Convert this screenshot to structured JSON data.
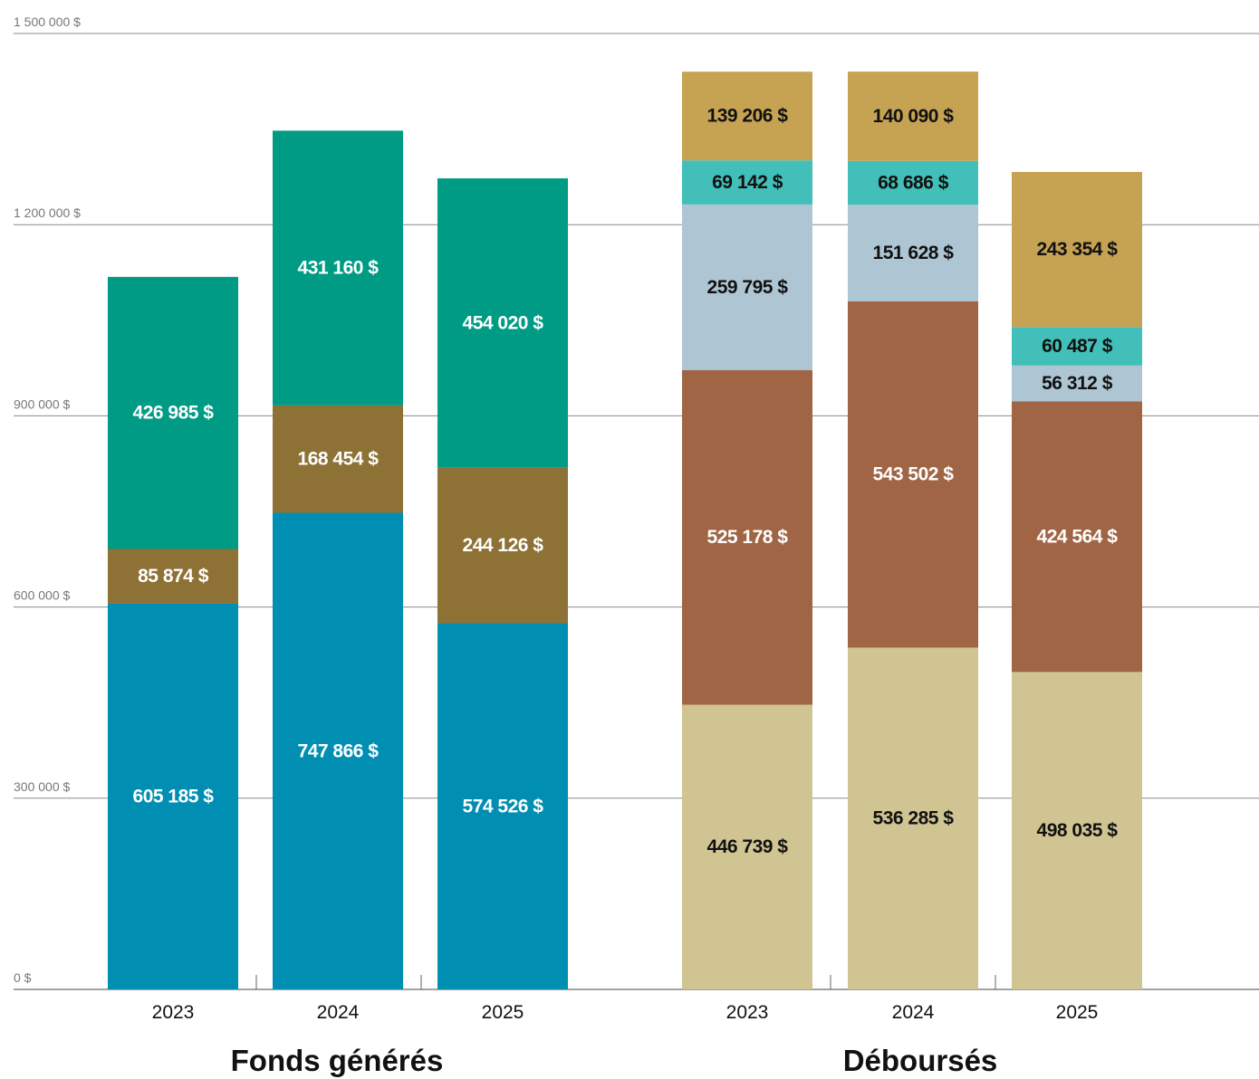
{
  "chart_data": {
    "type": "bar",
    "stacked": true,
    "ylim": [
      0,
      1500000
    ],
    "y_ticks": [
      0,
      300000,
      600000,
      900000,
      1200000,
      1500000
    ],
    "y_tick_labels": [
      "0 $",
      "300 000 $",
      "600 000 $",
      "900 000 $",
      "1 200 000 $",
      "1 500 000 $"
    ],
    "grid": true,
    "groups": [
      {
        "title": "Fonds générés",
        "categories": [
          "2023",
          "2024",
          "2025"
        ],
        "series": [
          {
            "color": "#008fb3",
            "label_color": "#ffffff",
            "values": [
              605185,
              747866,
              574526
            ],
            "labels": [
              "605 185 $",
              "747 866 $",
              "574 526 $"
            ]
          },
          {
            "color": "#8e7135",
            "label_color": "#ffffff",
            "values": [
              85874,
              168454,
              244126
            ],
            "labels": [
              "85 874 $",
              "168 454 $",
              "244 126 $"
            ]
          },
          {
            "color": "#009b84",
            "label_color": "#ffffff",
            "values": [
              426985,
              431160,
              454020
            ],
            "labels": [
              "426 985 $",
              "431 160 $",
              "454 020 $"
            ]
          }
        ]
      },
      {
        "title": "Déboursés",
        "categories": [
          "2023",
          "2024",
          "2025"
        ],
        "series": [
          {
            "color": "#d0c493",
            "label_color": "#111111",
            "values": [
              446739,
              536285,
              498035
            ],
            "labels": [
              "446 739 $",
              "536 285 $",
              "498 035 $"
            ]
          },
          {
            "color": "#a06544",
            "label_color": "#ffffff",
            "values": [
              525178,
              543502,
              424564
            ],
            "labels": [
              "525 178 $",
              "543 502 $",
              "424 564 $"
            ]
          },
          {
            "color": "#aec6d3",
            "label_color": "#111111",
            "values": [
              259795,
              151628,
              56312
            ],
            "labels": [
              "259 795 $",
              "151 628 $",
              "56 312 $"
            ]
          },
          {
            "color": "#41bfb8",
            "label_color": "#111111",
            "values": [
              69142,
              68686,
              60487
            ],
            "labels": [
              "69 142 $",
              "68 686 $",
              "60 487 $"
            ]
          },
          {
            "color": "#c6a253",
            "label_color": "#111111",
            "values": [
              139206,
              140090,
              243354
            ],
            "labels": [
              "139 206 $",
              "140 090 $",
              "243 354 $"
            ]
          }
        ]
      }
    ]
  }
}
